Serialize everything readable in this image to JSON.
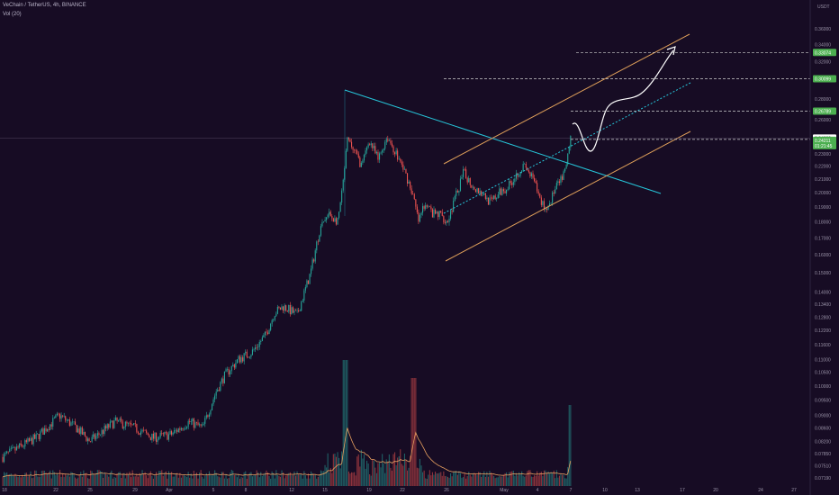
{
  "header": {
    "symbol_line": "VeChain / TetherUS, 4h, BINANCE",
    "volume_line": "Vol (20)"
  },
  "axis": {
    "currency": "USDT"
  },
  "colors": {
    "background": "#170c24",
    "up": "#26a69a",
    "down": "#ef5350",
    "wedge": "#26c6da",
    "channel": "#e0a05a",
    "projection": "#ffffff",
    "level_badge": "#4caf50",
    "current_badge": "#ffffff"
  },
  "chart_data": {
    "type": "candlestick",
    "scale": "log",
    "y_ticks": [
      "0.36000",
      "0.34000",
      "0.32000",
      "0.30000",
      "0.28000",
      "0.26000",
      "0.24000",
      "0.23000",
      "0.22000",
      "0.21000",
      "0.20000",
      "0.19000",
      "0.18000",
      "0.17000",
      "0.16000",
      "0.15000",
      "0.14000",
      "0.13400",
      "0.12800",
      "0.12200",
      "0.11600",
      "0.11000",
      "0.10500",
      "0.10000",
      "0.09500",
      "0.09000",
      "0.08600",
      "0.08200",
      "0.07850",
      "0.07510",
      "0.07190"
    ],
    "y_range": [
      0.0705,
      0.385
    ],
    "x_ticks": [
      "18",
      "22",
      "25",
      "29",
      "Apr",
      "5",
      "8",
      "12",
      "15",
      "19",
      "22",
      "26",
      "May",
      "4",
      "7",
      "10",
      "13",
      "17",
      "20",
      "24",
      "27"
    ],
    "price_levels": [
      {
        "label": "0.33074",
        "value": 0.33074
      },
      {
        "label": "0.30099",
        "value": 0.30099
      },
      {
        "label": "0.26789",
        "value": 0.26789
      }
    ],
    "current_price": {
      "label": "0.24330",
      "value": 0.2433
    },
    "last_badge": {
      "value_label": "0.24211",
      "sub_label": "01:21:45",
      "value": 0.24211
    },
    "volume_ma_period": 20
  }
}
